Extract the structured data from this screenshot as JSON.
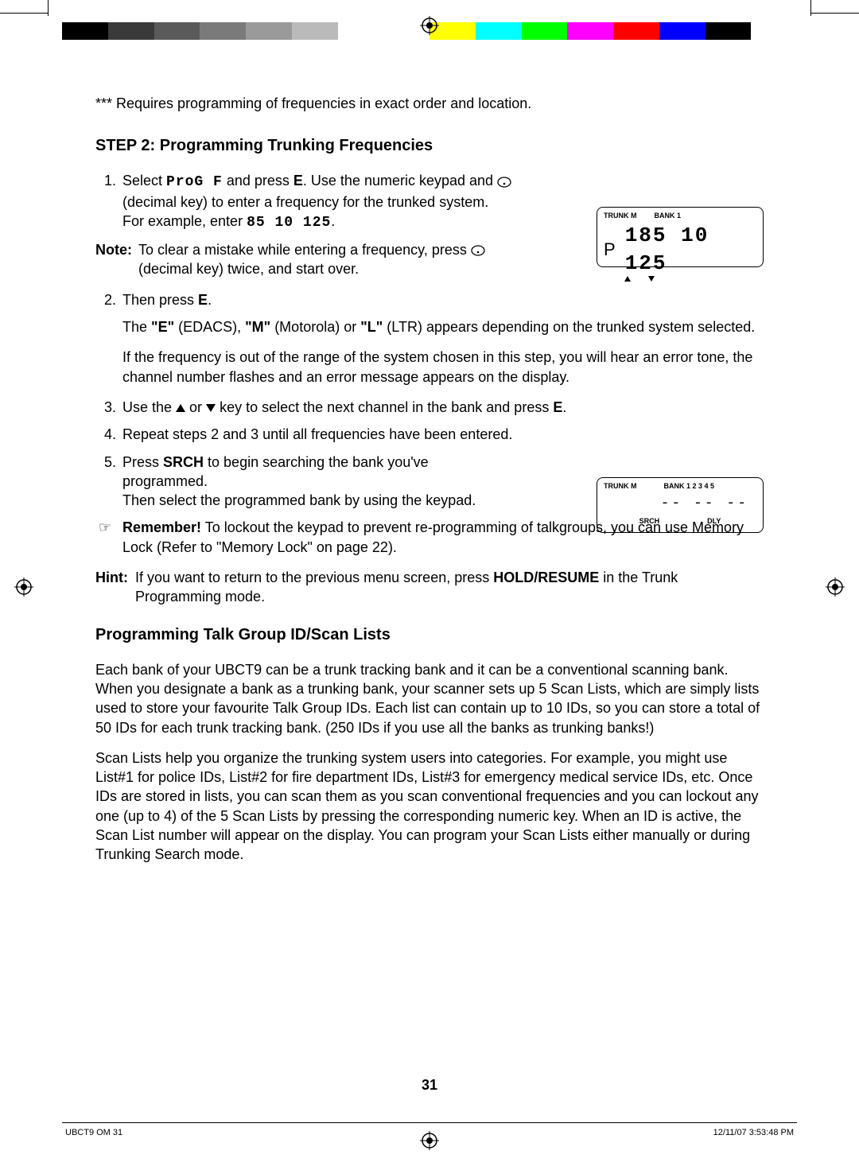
{
  "colorbar": [
    "#000000",
    "#3a3a3a",
    "#5a5a5a",
    "#7a7a7a",
    "#9a9a9a",
    "#bababa",
    "#ffffff",
    "#ffffff",
    "#ffff00",
    "#00ffff",
    "#00ff00",
    "#ff00ff",
    "#ff0000",
    "#0000ff",
    "#000000",
    "#ffffff"
  ],
  "footnote": "*** Requires programming of frequencies in exact order and location.",
  "heading1": "STEP 2: Programming Trunking Frequencies",
  "step1_a": "Select ",
  "step1_prog": "ProG F",
  "step1_b": " and press ",
  "step1_c": ". Use the numeric keypad and ",
  "step1_d": " (decimal key) to enter a frequency for the trunked system.",
  "step1_e": "For example, enter ",
  "step1_freq": "85 10 125",
  "step1_f": ".",
  "note_label": "Note:",
  "note_a": "To clear a mistake while entering a frequency, press ",
  "note_b": " (decimal key) twice, and start over.",
  "step2_a": "Then press ",
  "step2_b": ".",
  "step2_p1a": "The ",
  "step2_p1b": " (EDACS), ",
  "step2_p1c": " (Motorola) or ",
  "step2_p1d": " (LTR) appears depending on the trunked system selected.",
  "step2_p2": "If the frequency is out of the range of the system chosen in this step, you will hear an error tone, the channel number flashes and an error message appears on the display.",
  "step3_a": "Use the ",
  "step3_b": " or ",
  "step3_c": " key to select the next channel in the bank and press ",
  "step3_d": ".",
  "step4": "Repeat steps 2 and 3 until all frequencies have been entered.",
  "step5_a": "Press ",
  "step5_b": " to begin searching the bank you've programmed.",
  "step5_c": "Then select the programmed bank by using the keypad.",
  "remember_a": "Remember!",
  "remember_b": " To lockout the keypad to prevent re-programming of talkgroups, you can use Memory Lock (Refer to \"Memory Lock\" on page 22).",
  "hint_label": "Hint:",
  "hint_a": "If you want to return to the previous menu screen, press ",
  "hint_b": " in the Trunk Programming mode.",
  "heading2": "Programming Talk Group ID/Scan Lists",
  "para1": "Each bank of your UBCT9 can be a trunk tracking bank and it can be a conventional scanning bank. When you designate a bank as a trunking bank, your scanner sets up 5 Scan Lists, which are simply lists used to store your favourite Talk Group IDs. Each list can contain up to 10 IDs, so you can store a total of 50 IDs for each trunk tracking bank. (250 IDs if you use all the banks as trunking banks!)",
  "para2": "Scan Lists help you organize the trunking system users into categories. For example, you might use List#1 for police IDs, List#2 for fire department IDs, List#3 for emergency medical service IDs, etc. Once IDs are stored in lists, you can scan them as you scan conventional frequencies and you can lockout any one (up to 4) of the 5 Scan Lists by pressing the corresponding numeric key. When an ID is active, the Scan List number will appear on the display. You can program your Scan Lists either manually or during Trunking Search mode.",
  "pagenum": "31",
  "footer_left": "UBCT9 OM   31",
  "footer_right": "12/11/07   3:53:48 PM",
  "disp1": {
    "trunk": "TRUNK M",
    "bank": "BANK 1",
    "p": "P",
    "freq": "185 10 125"
  },
  "disp2": {
    "trunk": "TRUNK M",
    "bank": "BANK 1 2 3 4 5",
    "dashes": "-- -- --",
    "srch": "SRCH",
    "dly": "DLY"
  },
  "keys": {
    "E": "E",
    "SRCH": "SRCH",
    "HOLD": "HOLD/RESUME",
    "qE": "\"E\"",
    "qM": "\"M\"",
    "qL": "\"L\""
  }
}
